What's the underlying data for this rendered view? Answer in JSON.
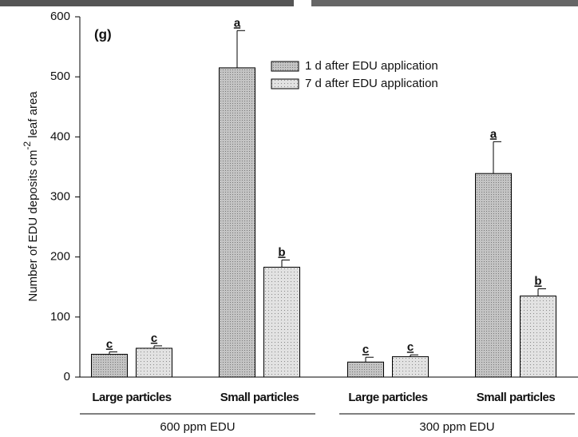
{
  "chart_data": {
    "type": "bar",
    "panel_label": "(g)",
    "ylabel_parts": [
      "Number of EDU deposits cm",
      "-2",
      " leaf area"
    ],
    "categories": [
      "Large particles",
      "Small particles",
      "Large  particles",
      "Small particles"
    ],
    "groups": [
      "600 ppm EDU",
      "300 ppm EDU"
    ],
    "series": [
      {
        "name": "1 d after EDU application",
        "color": "#c4c4c4",
        "values": [
          38,
          515,
          25,
          339
        ],
        "errors": [
          4,
          62,
          8,
          53
        ],
        "letters": [
          "c",
          "a",
          "c",
          "a"
        ]
      },
      {
        "name": "7 d after EDU application",
        "color": "#e2e2e2",
        "values": [
          48,
          183,
          34,
          135
        ],
        "errors": [
          4,
          12,
          3,
          12
        ],
        "letters": [
          "c",
          "b",
          "c",
          "b"
        ]
      }
    ],
    "ylim": [
      0,
      600
    ],
    "yticks": [
      0,
      100,
      200,
      300,
      400,
      500,
      600
    ]
  }
}
